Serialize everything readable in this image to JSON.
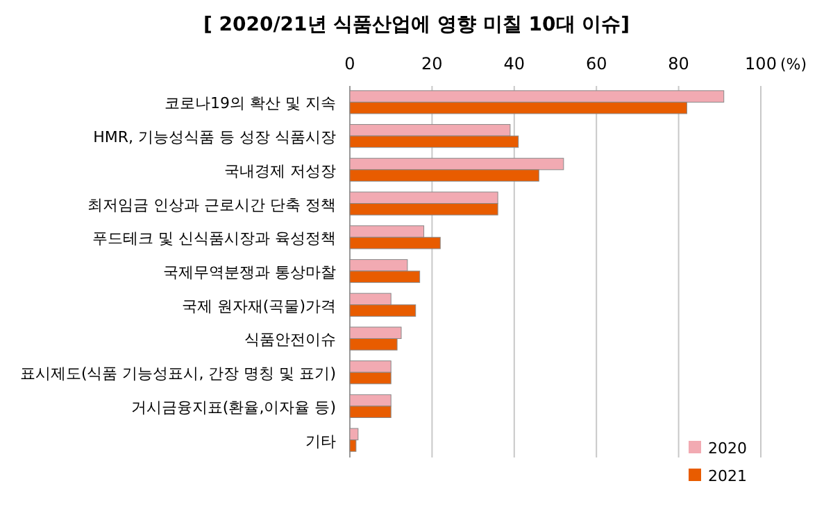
{
  "chart_data": {
    "type": "bar",
    "orientation": "horizontal",
    "title": "[ 2020/21년 식품산업에 영향 미칠 10대 이슈]",
    "xlabel": "(%)",
    "categories": [
      "코로나19의 확산 및 지속",
      "HMR, 기능성식품 등 성장 식품시장",
      "국내경제 저성장",
      "최저임금 인상과 근로시간 단축 정책",
      "푸드테크 및 신식품시장과 육성정책",
      "국제무역분쟁과 통상마찰",
      "국제 원자재(곡물)가격",
      "식품안전이슈",
      "표시제도(식품 기능성표시, 간장 명칭 및 표기)",
      "거시금융지표(환율,이자율 등)",
      "기타"
    ],
    "series": [
      {
        "name": "2020",
        "color": "#f2aab2",
        "values": [
          91,
          39,
          52,
          36,
          18,
          14,
          10,
          12.5,
          10,
          10,
          2
        ]
      },
      {
        "name": "2021",
        "color": "#e85c00",
        "values": [
          82,
          41,
          46,
          36,
          22,
          17,
          16,
          11.5,
          10,
          10,
          1.5
        ]
      }
    ],
    "xlim": [
      0,
      100
    ],
    "xticks": [
      0,
      20,
      40,
      60,
      80,
      100
    ],
    "grid": "x",
    "legend": "bottom right"
  }
}
